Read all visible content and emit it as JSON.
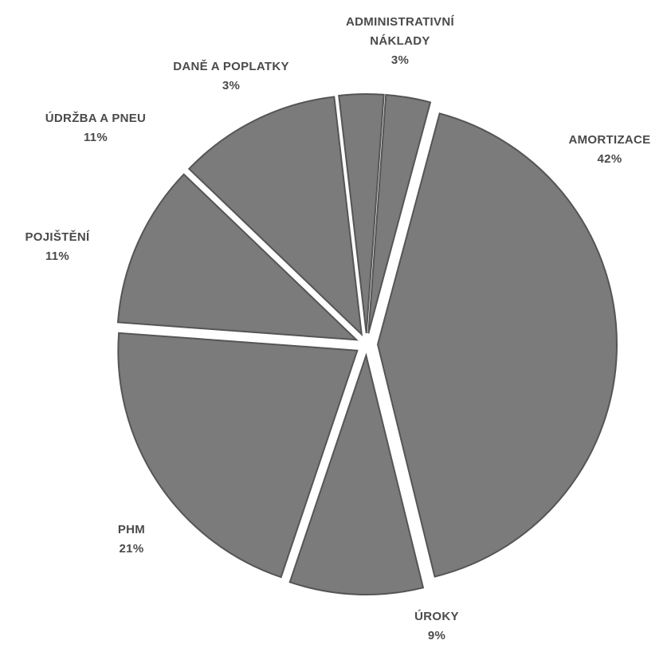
{
  "chart_data": {
    "type": "pie",
    "title": "",
    "legend": "none",
    "slices": [
      {
        "label": "AMORTIZACE",
        "label_lines": [
          "AMORTIZACE"
        ],
        "percent_label": "42%",
        "value": 42
      },
      {
        "label": "ÚROKY",
        "label_lines": [
          "ÚROKY"
        ],
        "percent_label": "9%",
        "value": 9
      },
      {
        "label": "PHM",
        "label_lines": [
          "PHM"
        ],
        "percent_label": "21%",
        "value": 21
      },
      {
        "label": "POJIŠTĚNÍ",
        "label_lines": [
          "POJIŠTĚNÍ"
        ],
        "percent_label": "11%",
        "value": 11
      },
      {
        "label": "ÚDRŽBA A PNEU",
        "label_lines": [
          "ÚDRŽBA A PNEU"
        ],
        "percent_label": "11%",
        "value": 11
      },
      {
        "label": "DANĚ A POPLATKY",
        "label_lines": [
          "DANĚ A POPLATKY"
        ],
        "percent_label": "3%",
        "value": 3
      },
      {
        "label": "ADMINISTRATIVNÍ NÁKLADY",
        "label_lines": [
          "ADMINISTRATIVNÍ",
          "NÁKLADY"
        ],
        "percent_label": "3%",
        "value": 3
      }
    ]
  },
  "colors": {
    "slice_fill": "#7b7b7b",
    "slice_edge": "#555555",
    "label_text": "#4a4a4a",
    "background": "#ffffff"
  }
}
